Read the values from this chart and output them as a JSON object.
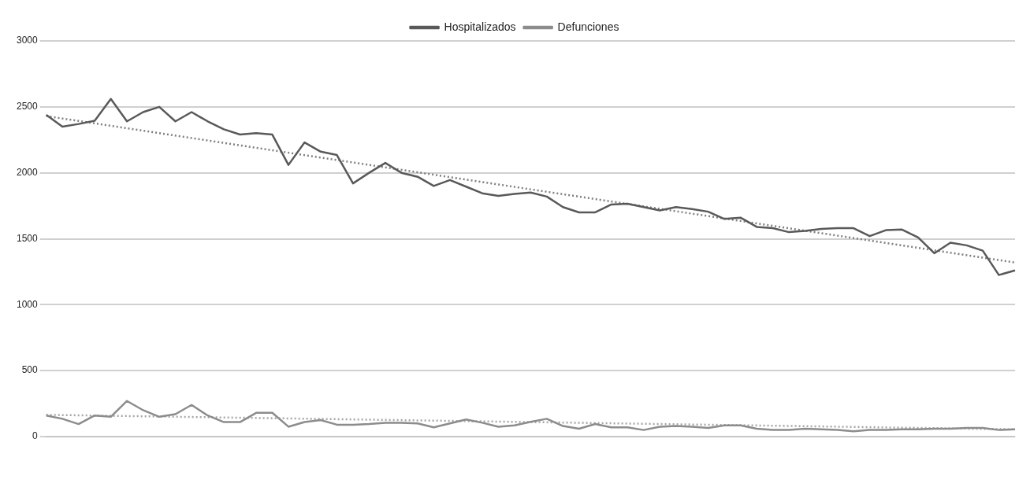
{
  "chart_data": {
    "type": "line",
    "categories": [
      null,
      null,
      null,
      null,
      null,
      null,
      null,
      null,
      null,
      null,
      null,
      null,
      null,
      null,
      null,
      null,
      null,
      null,
      null,
      null,
      null,
      null,
      null,
      null,
      null,
      null,
      null,
      null,
      null,
      null,
      null,
      null,
      null,
      null,
      null,
      null,
      null,
      null,
      null,
      null,
      null,
      null,
      null,
      null,
      null,
      null,
      null,
      null,
      null,
      null,
      null,
      null,
      null,
      null,
      null,
      null,
      null,
      null,
      null,
      null,
      null
    ],
    "series": [
      {
        "name": "Hospitalizados",
        "color": "#595959",
        "marker": "none",
        "line_style": "solid",
        "values": [
          2440,
          2350,
          2370,
          2395,
          2560,
          2390,
          2460,
          2500,
          2390,
          2460,
          2390,
          2330,
          2290,
          2300,
          2290,
          2060,
          2230,
          2160,
          2135,
          1920,
          2000,
          2075,
          2000,
          1970,
          1900,
          1945,
          1895,
          1845,
          1825,
          1840,
          1850,
          1820,
          1740,
          1700,
          1700,
          1760,
          1765,
          1740,
          1715,
          1740,
          1725,
          1705,
          1650,
          1660,
          1590,
          1580,
          1550,
          1560,
          1575,
          1580,
          1580,
          1520,
          1565,
          1570,
          1510,
          1390,
          1470,
          1450,
          1410,
          1225,
          1260
        ]
      },
      {
        "name": "Defunciones",
        "color": "#8c8c8c",
        "marker": "none",
        "line_style": "solid",
        "values": [
          160,
          135,
          95,
          160,
          150,
          270,
          200,
          150,
          170,
          240,
          160,
          110,
          110,
          180,
          180,
          75,
          110,
          125,
          90,
          90,
          95,
          105,
          105,
          100,
          70,
          100,
          130,
          105,
          75,
          85,
          112,
          135,
          80,
          60,
          95,
          70,
          70,
          50,
          75,
          80,
          75,
          65,
          85,
          85,
          60,
          50,
          50,
          60,
          55,
          50,
          40,
          50,
          50,
          55,
          55,
          60,
          60,
          65,
          65,
          50,
          55
        ]
      },
      {
        "type": "line",
        "color": "#7f7f7f",
        "marker": "none",
        "line_style": "dotted",
        "values": [
          2430,
          null,
          null,
          null,
          null,
          null,
          null,
          null,
          null,
          null,
          null,
          null,
          null,
          null,
          null,
          null,
          null,
          null,
          null,
          null,
          null,
          null,
          null,
          null,
          null,
          null,
          null,
          null,
          null,
          null,
          null,
          null,
          null,
          null,
          null,
          null,
          null,
          null,
          null,
          null,
          null,
          null,
          null,
          null,
          null,
          null,
          null,
          null,
          null,
          null,
          null,
          null,
          null,
          null,
          null,
          null,
          null,
          null,
          null,
          null,
          1320
        ]
      },
      {
        "type": "line",
        "color": "#a6a6a6",
        "marker": "none",
        "line_style": "dotted",
        "values": [
          165,
          null,
          null,
          null,
          null,
          null,
          null,
          null,
          null,
          null,
          null,
          null,
          null,
          null,
          null,
          null,
          null,
          null,
          null,
          null,
          null,
          null,
          null,
          null,
          null,
          null,
          null,
          null,
          null,
          null,
          null,
          null,
          null,
          null,
          null,
          null,
          null,
          null,
          null,
          null,
          null,
          null,
          null,
          null,
          null,
          null,
          null,
          null,
          null,
          null,
          null,
          null,
          null,
          null,
          null,
          null,
          null,
          null,
          null,
          null,
          55
        ]
      }
    ],
    "ylim": [
      0,
      3000
    ],
    "yticks": [
      0,
      500,
      1000,
      1500,
      2000,
      2500,
      3000
    ],
    "grid": "y",
    "legend": "top"
  }
}
